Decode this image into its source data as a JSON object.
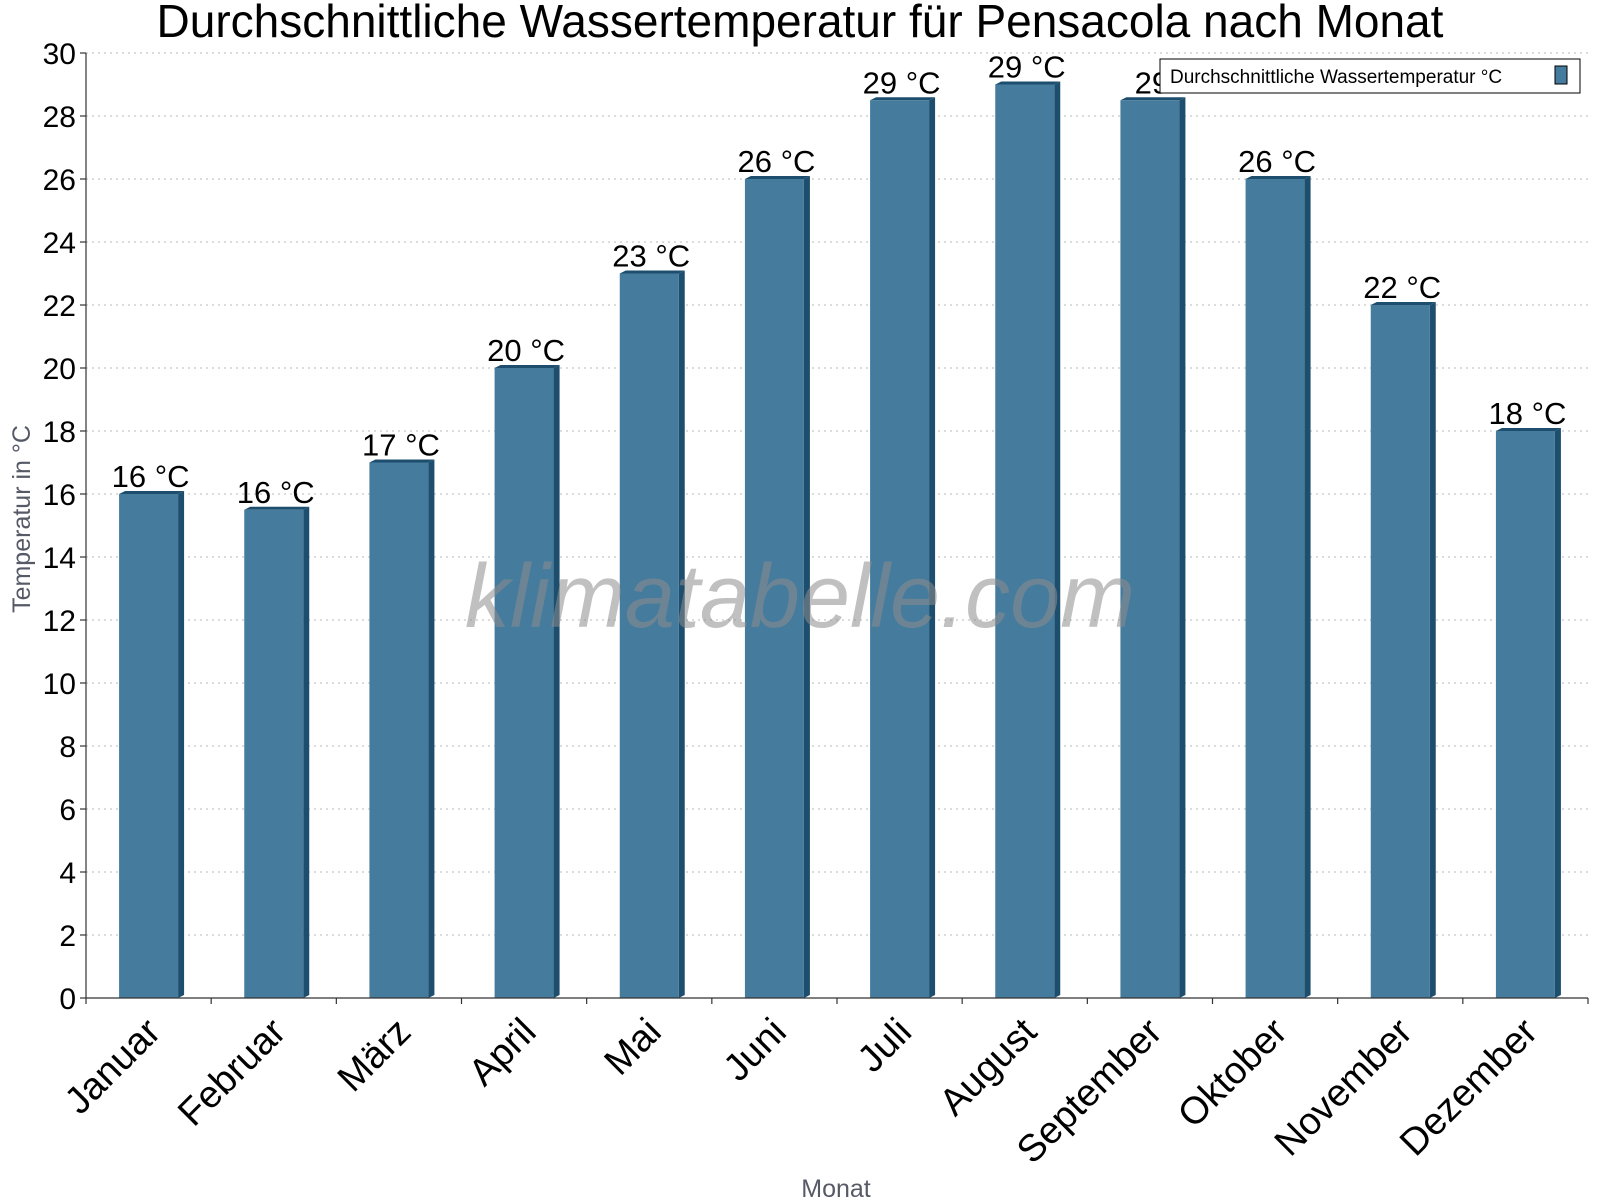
{
  "chart_data": {
    "type": "bar",
    "title": "Durchschnittliche Wassertemperatur für Pensacola nach Monat",
    "xlabel": "Monat",
    "ylabel": "Temperatur in °C",
    "categories": [
      "Januar",
      "Februar",
      "März",
      "April",
      "Mai",
      "Juni",
      "Juli",
      "August",
      "September",
      "Oktober",
      "November",
      "Dezember"
    ],
    "series": [
      {
        "name": "Durchschnittliche Wassertemperatur °C",
        "values": [
          16,
          15.5,
          17,
          20,
          23,
          26,
          28.5,
          29,
          28.5,
          26,
          22,
          18
        ],
        "labels": [
          "16 °C",
          "16 °C",
          "17 °C",
          "20 °C",
          "23 °C",
          "26 °C",
          "29 °C",
          "29 °C",
          "29",
          "26 °C",
          "22 °C",
          "18 °C"
        ]
      }
    ],
    "ylim": [
      0,
      30
    ],
    "yticks": [
      0,
      2,
      4,
      6,
      8,
      10,
      12,
      14,
      16,
      18,
      20,
      22,
      24,
      26,
      28,
      30
    ],
    "grid": true,
    "legend_position": "top-right",
    "colors": {
      "bar": "#457b9d",
      "bar_dark": "#1d4e6e"
    },
    "watermark": "klimatabelle.com"
  }
}
